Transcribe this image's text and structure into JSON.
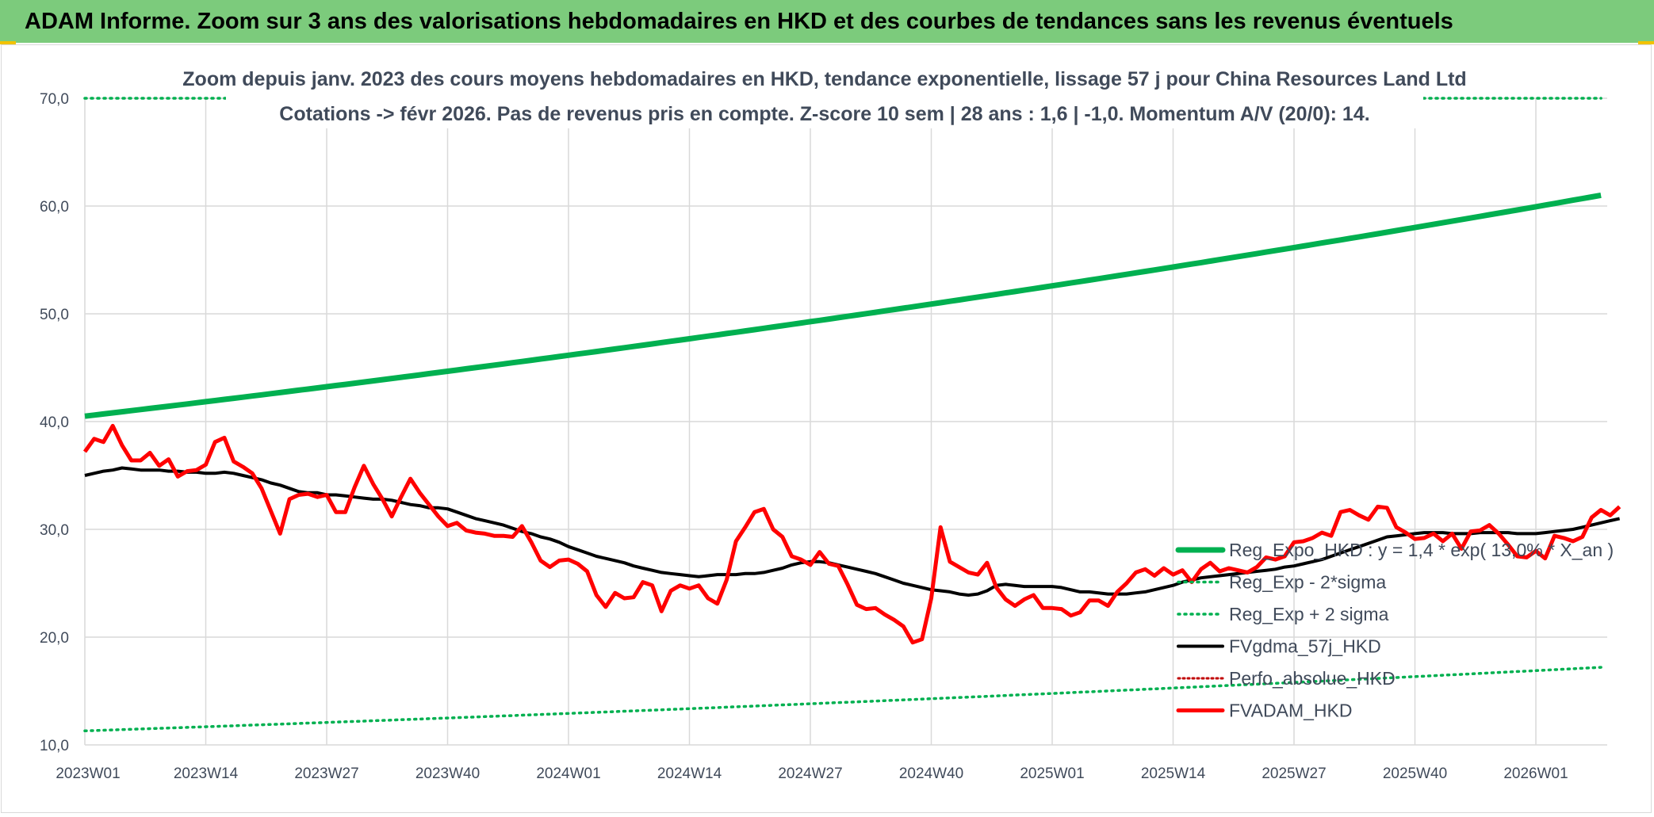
{
  "header": {
    "title": "ADAM Informe. Zoom sur 3 ans des valorisations hebdomadaires en HKD et des courbes de tendances sans les revenus éventuels"
  },
  "colors": {
    "banner": "#7ccb7c",
    "regression": "#00b050",
    "fvadam": "#ff0000",
    "fvgdma": "#000000",
    "perfo": "#c00000",
    "text": "#404a5a",
    "grid": "#d9d9d9"
  },
  "chart_data": {
    "type": "line",
    "title_line1": "Zoom depuis janv. 2023 des cours moyens hebdomadaires en HKD, tendance exponentielle, lissage 57 j pour China Resources Land Ltd",
    "title_line2": "Cotations -> févr 2026. Pas de revenus pris en compte. Z-score 10 sem | 28 ans : 1,6 | -1,0. Momentum A/V (20/0): 14.",
    "ylim": [
      10,
      70
    ],
    "y_ticks": [
      "10,0",
      "20,0",
      "30,0",
      "40,0",
      "50,0",
      "60,0",
      "70,0"
    ],
    "x_ticks": [
      "2023W01",
      "2023W14",
      "2023W27",
      "2023W40",
      "2024W01",
      "2024W14",
      "2024W27",
      "2024W40",
      "2025W01",
      "2025W14",
      "2025W27",
      "2025W40",
      "2026W01"
    ],
    "grid": true,
    "legend_position": "bottom-right",
    "legend": [
      "Reg_Expo_HKD : y = 1,4 * exp( 13,0% * X_an )",
      "Reg_Exp - 2*sigma",
      "Reg_Exp + 2 sigma",
      "FVgdma_57j_HKD",
      "Perfo_absolue_HKD",
      "FVADAM_HKD"
    ],
    "series": [
      {
        "name": "Reg_Expo_HKD : y = 1,4 * exp( 13,0% * X_an )",
        "start": 40.5,
        "end": 61.0
      },
      {
        "name": "Reg_Exp - 2*sigma",
        "start": 11.3,
        "end": 17.2
      },
      {
        "name": "Reg_Exp + 2 sigma",
        "start": 70.0,
        "end": 70.0
      },
      {
        "name": "FVgdma_57j_HKD",
        "values": [
          35.0,
          35.2,
          35.4,
          35.5,
          35.7,
          35.6,
          35.5,
          35.5,
          35.5,
          35.4,
          35.4,
          35.3,
          35.3,
          35.2,
          35.2,
          35.3,
          35.2,
          35.0,
          34.8,
          34.6,
          34.3,
          34.1,
          33.8,
          33.5,
          33.4,
          33.4,
          33.2,
          33.2,
          33.1,
          33.0,
          32.9,
          32.8,
          32.8,
          32.7,
          32.5,
          32.3,
          32.2,
          32.0,
          32.0,
          31.9,
          31.6,
          31.3,
          31.0,
          30.8,
          30.6,
          30.4,
          30.1,
          29.8,
          29.6,
          29.3,
          29.1,
          28.8,
          28.4,
          28.1,
          27.8,
          27.5,
          27.3,
          27.1,
          26.9,
          26.6,
          26.4,
          26.2,
          26.0,
          25.9,
          25.8,
          25.7,
          25.6,
          25.7,
          25.8,
          25.8,
          25.8,
          25.9,
          25.9,
          26.0,
          26.2,
          26.4,
          26.7,
          26.9,
          27.0,
          27.0,
          26.9,
          26.7,
          26.5,
          26.3,
          26.1,
          25.9,
          25.6,
          25.3,
          25.0,
          24.8,
          24.6,
          24.4,
          24.3,
          24.2,
          24.0,
          23.9,
          24.0,
          24.3,
          24.8,
          24.9,
          24.8,
          24.7,
          24.7,
          24.7,
          24.7,
          24.6,
          24.4,
          24.2,
          24.2,
          24.1,
          24.0,
          24.0,
          24.0,
          24.1,
          24.2,
          24.4,
          24.6,
          24.8,
          25.1,
          25.3,
          25.5,
          25.6,
          25.7,
          25.8,
          25.9,
          26.0,
          26.1,
          26.2,
          26.3,
          26.5,
          26.6,
          26.8,
          27.0,
          27.2,
          27.5,
          27.8,
          28.1,
          28.4,
          28.7,
          29.0,
          29.3,
          29.4,
          29.5,
          29.6,
          29.7,
          29.7,
          29.7,
          29.6,
          29.6,
          29.6,
          29.7,
          29.7,
          29.7,
          29.7,
          29.6,
          29.6,
          29.6,
          29.7,
          29.8,
          29.9,
          30.0,
          30.2,
          30.4,
          30.6,
          30.8,
          31.0
        ]
      },
      {
        "name": "Perfo_absolue_HKD",
        "values": []
      },
      {
        "name": "FVADAM_HKD",
        "values": [
          37.2,
          38.4,
          38.1,
          39.6,
          37.8,
          36.4,
          36.4,
          37.1,
          35.9,
          36.5,
          34.9,
          35.4,
          35.5,
          36.0,
          38.1,
          38.5,
          36.3,
          35.8,
          35.2,
          33.8,
          31.7,
          29.6,
          32.8,
          33.2,
          33.3,
          33.0,
          33.2,
          31.6,
          31.6,
          33.9,
          35.9,
          34.2,
          32.8,
          31.2,
          33.0,
          34.7,
          33.4,
          32.3,
          31.2,
          30.3,
          30.6,
          29.9,
          29.7,
          29.6,
          29.4,
          29.4,
          29.3,
          30.3,
          28.8,
          27.1,
          26.5,
          27.1,
          27.2,
          26.8,
          26.1,
          23.9,
          22.8,
          24.1,
          23.6,
          23.7,
          25.1,
          24.8,
          22.4,
          24.3,
          24.8,
          24.5,
          24.8,
          23.6,
          23.1,
          25.3,
          28.9,
          30.2,
          31.6,
          31.9,
          30.0,
          29.3,
          27.5,
          27.2,
          26.7,
          27.9,
          26.8,
          26.6,
          24.9,
          23.0,
          22.6,
          22.7,
          22.1,
          21.6,
          21.0,
          19.5,
          19.8,
          23.6,
          30.2,
          27.0,
          26.5,
          26.0,
          25.8,
          26.9,
          24.6,
          23.5,
          22.9,
          23.5,
          23.9,
          22.7,
          22.7,
          22.6,
          22.0,
          22.3,
          23.4,
          23.4,
          22.9,
          24.2,
          25.0,
          26.0,
          26.3,
          25.7,
          26.4,
          25.8,
          26.2,
          25.1,
          26.3,
          26.9,
          26.1,
          26.4,
          26.2,
          26.0,
          26.5,
          27.4,
          27.2,
          27.5,
          28.8,
          28.9,
          29.2,
          29.7,
          29.4,
          31.6,
          31.8,
          31.3,
          30.9,
          32.1,
          32.0,
          30.2,
          29.7,
          29.1,
          29.2,
          29.6,
          28.9,
          29.6,
          28.2,
          29.8,
          29.9,
          30.4,
          29.6,
          28.6,
          27.5,
          27.4,
          28.0,
          27.3,
          29.4,
          29.2,
          28.9,
          29.3,
          31.1,
          31.8,
          31.3,
          32.1
        ]
      }
    ]
  }
}
